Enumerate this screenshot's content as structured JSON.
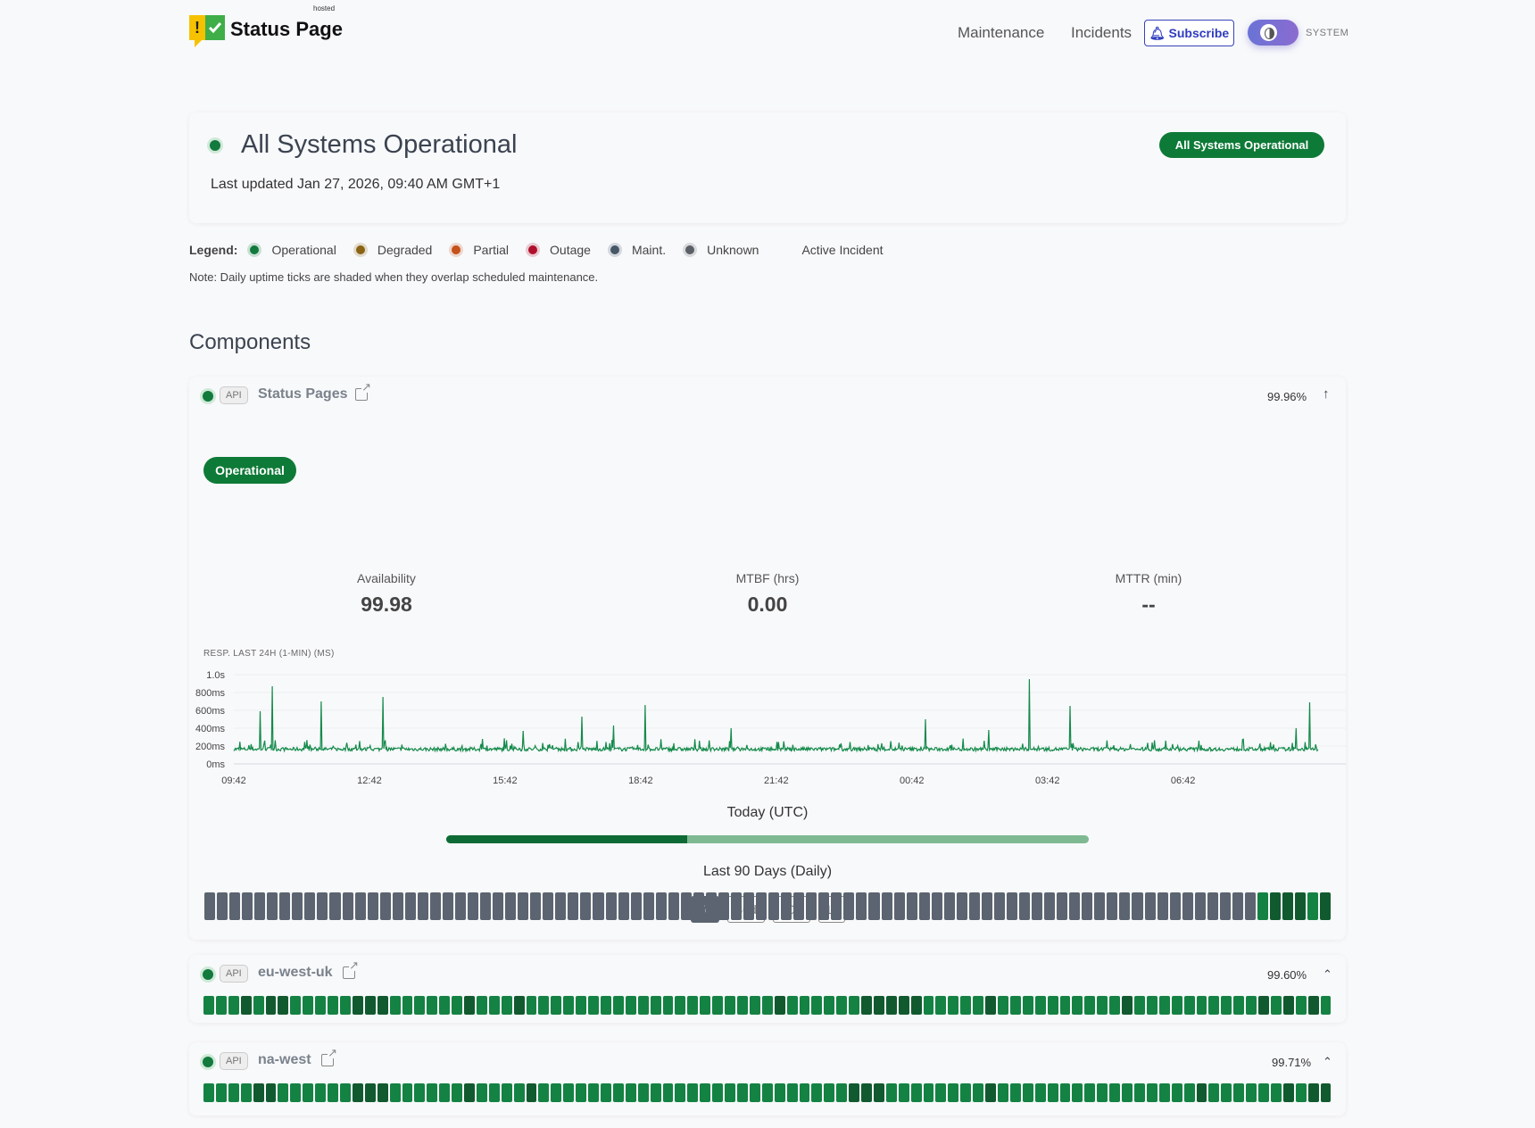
{
  "header": {
    "logo_text": "Status Page",
    "logo_sub": "hosted",
    "nav": [
      "Maintenance",
      "Incidents"
    ],
    "subscribe": "Subscribe",
    "theme": "SYSTEM"
  },
  "summary": {
    "title": "All Systems Operational",
    "updated": "Last updated Jan 27, 2026, 09:40 AM GMT+1",
    "badge": "All Systems Operational"
  },
  "legend": {
    "label": "Legend:",
    "items": [
      {
        "label": "Operational",
        "color": "#127a3c"
      },
      {
        "label": "Degraded",
        "color": "#8a6414"
      },
      {
        "label": "Partial",
        "color": "#c4521a"
      },
      {
        "label": "Outage",
        "color": "#b0102c"
      },
      {
        "label": "Maint.",
        "color": "#465768"
      },
      {
        "label": "Unknown",
        "color": "#5b5f66"
      },
      {
        "label": "Active Incident",
        "color": ""
      }
    ],
    "note": "Note: Daily uptime ticks are shaded when they overlap scheduled maintenance."
  },
  "components_title": "Components",
  "colors": {
    "u": "#5b6470",
    "o": "#148243",
    "d": "#115a2f",
    "p": "#c4521a"
  },
  "components": [
    {
      "tag": "API",
      "name": "Status Pages",
      "uptime": "99.96%",
      "status": "Operational",
      "ranges": [
        "7d",
        "30d",
        "90d",
        "1y"
      ],
      "active_range": "7d",
      "stats": [
        {
          "label": "Availability",
          "value": "99.98"
        },
        {
          "label": "MTBF (hrs)",
          "value": "0.00"
        },
        {
          "label": "MTTR (min)",
          "value": "--"
        }
      ],
      "today_label": "Today (UTC)",
      "today_progress": 0.375,
      "days_label": "Last 90 Days (Daily)",
      "days": "uuuuuuuuuuuuuuuuuuuuuuuuuuuuuuuuuuuuuuuuuuuuuuuuuuuuuuuuuuuuuuuuuuuuuuuuuuuuuuuuuuuuodddod"
    },
    {
      "tag": "API",
      "name": "eu-west-uk",
      "uptime": "99.60%",
      "days": "ooododdooooodddoooooodooodoooooooooooooooooooodoooooodddddooooodoooooooooodoooooooooodododo"
    },
    {
      "tag": "API",
      "name": "na-west",
      "uptime": "99.71%",
      "days": "ooooddoooooodddoooooodoooodooooooooooooooooooooooooodddoooooooodoooooooooooooooodoooooododd"
    }
  ],
  "chart_data": {
    "type": "line",
    "title": "RESP. LAST 24H (1-MIN) (MS)",
    "yticks": [
      "0ms",
      "200ms",
      "400ms",
      "600ms",
      "800ms",
      "1.0s"
    ],
    "ylim": [
      0,
      1000
    ],
    "xticks": [
      "09:42",
      "12:42",
      "15:42",
      "18:42",
      "21:42",
      "00:42",
      "03:42",
      "06:42"
    ],
    "x_start": "09:42",
    "baseline_ms": 170,
    "color": "#148a4a",
    "grid": true,
    "spikes": [
      [
        "10:17",
        590
      ],
      [
        "10:33",
        870
      ],
      [
        "11:38",
        700
      ],
      [
        "13:00",
        750
      ],
      [
        "16:06",
        370
      ],
      [
        "17:24",
        530
      ],
      [
        "18:06",
        430
      ],
      [
        "18:48",
        660
      ],
      [
        "20:42",
        400
      ],
      [
        "01:00",
        500
      ],
      [
        "02:24",
        380
      ],
      [
        "03:18",
        950
      ],
      [
        "04:12",
        650
      ],
      [
        "09:12",
        400
      ],
      [
        "09:30",
        690
      ]
    ]
  }
}
